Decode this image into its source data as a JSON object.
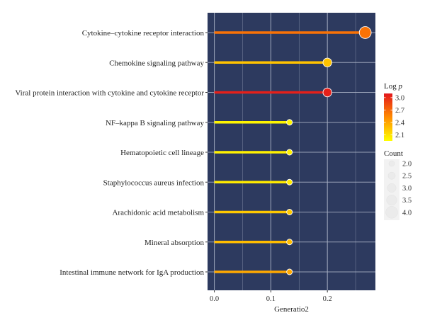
{
  "chart_data": {
    "type": "lollipop",
    "title": "",
    "xlabel": "Generatio2",
    "ylabel": "",
    "xlim": [
      -0.012,
      0.285
    ],
    "xticks": [
      0.0,
      0.1,
      0.2
    ],
    "xtick_labels": [
      "0.0",
      "0.1",
      "0.2"
    ],
    "grid": true,
    "panel_background": "#2d3a5f",
    "grid_color": "#aab3c6",
    "categories": [
      "Cytokine–cytokine receptor interaction",
      "Chemokine signaling pathway",
      "Viral protein interaction with cytokine and cytokine receptor",
      "NF–kappa B signaling pathway",
      "Hematopoietic cell lineage",
      "Staphylococcus aureus infection",
      "Arachidonic acid metabolism",
      "Mineral absorption",
      "Intestinal immune network for IgA production"
    ],
    "gene_ratio": [
      0.267,
      0.2,
      0.2,
      0.133,
      0.133,
      0.133,
      0.133,
      0.133,
      0.133
    ],
    "log_p": [
      2.65,
      2.25,
      3.05,
      2.0,
      2.02,
      2.05,
      2.22,
      2.28,
      2.38
    ],
    "count": [
      4,
      3,
      3,
      2,
      2,
      2,
      2,
      2,
      2
    ],
    "color_legend": {
      "title_main": "Log ",
      "title_italic": "p",
      "ticks": [
        3.0,
        2.7,
        2.4,
        2.1
      ],
      "tick_labels": [
        "3.0",
        "2.7",
        "2.4",
        "2.1"
      ],
      "range": [
        1.95,
        3.1
      ],
      "low_color": "#ffff00",
      "mid_color": "#ff8c00",
      "high_color": "#e3161c",
      "position": "right"
    },
    "size_legend": {
      "title": "Count",
      "values": [
        2.0,
        2.5,
        3.0,
        3.5,
        4.0
      ],
      "labels": [
        "2.0",
        "2.5",
        "3.0",
        "3.5",
        "4.0"
      ],
      "position": "right"
    }
  }
}
